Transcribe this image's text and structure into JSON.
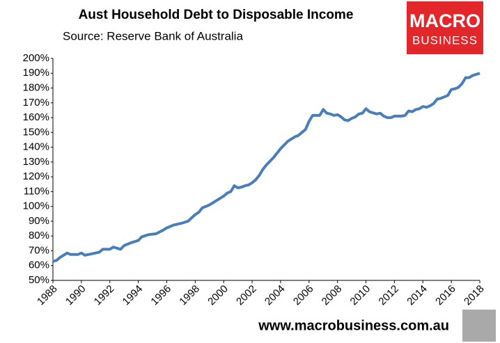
{
  "chart_data": {
    "type": "line",
    "title": "Aust Household Debt to Disposable Income",
    "subtitle": "Source: Reserve Bank of Australia",
    "logo_top": "MACRO",
    "logo_bottom": "BUSINESS",
    "footer": "www.macrobusiness.com.au",
    "color": "#4a7ebb",
    "x": [
      1988.0,
      1988.25,
      1988.5,
      1989.0,
      1989.25,
      1989.75,
      1990.0,
      1990.25,
      1990.75,
      1991.25,
      1991.5,
      1992.0,
      1992.25,
      1992.75,
      1993.0,
      1993.5,
      1994.0,
      1994.25,
      1994.75,
      1995.25,
      1995.75,
      1996.0,
      1996.5,
      1997.0,
      1997.5,
      1998.0,
      1998.25,
      1998.5,
      1999.0,
      1999.5,
      2000.0,
      2000.25,
      2000.5,
      2000.75,
      2001.0,
      2001.25,
      2001.5,
      2001.75,
      2002.0,
      2002.25,
      2002.5,
      2002.75,
      2003.0,
      2003.5,
      2004.0,
      2004.5,
      2005.0,
      2005.25,
      2005.5,
      2005.75,
      2006.0,
      2006.25,
      2006.75,
      2007.0,
      2007.25,
      2007.5,
      2007.75,
      2008.0,
      2008.25,
      2008.5,
      2008.75,
      2009.0,
      2009.25,
      2009.5,
      2009.75,
      2010.0,
      2010.25,
      2010.75,
      2011.0,
      2011.25,
      2011.5,
      2011.75,
      2012.0,
      2012.5,
      2012.75,
      2013.0,
      2013.25,
      2013.5,
      2013.75,
      2014.0,
      2014.25,
      2014.5,
      2014.75,
      2015.0,
      2015.25,
      2015.75,
      2016.0,
      2016.25,
      2016.5,
      2016.75,
      2017.0,
      2017.25,
      2017.5,
      2018.0
    ],
    "values": [
      63,
      63.5,
      65.5,
      68.5,
      67.5,
      67.5,
      68.5,
      67,
      68,
      69,
      71,
      71,
      72.5,
      71,
      73.5,
      75.5,
      77,
      79.5,
      81,
      81.5,
      84,
      85.5,
      87.5,
      88.5,
      90,
      94.5,
      96,
      99,
      101,
      104,
      107,
      109,
      110,
      114,
      112.5,
      113,
      114,
      114.5,
      116,
      118,
      121,
      125,
      128,
      133,
      139,
      144,
      147,
      148,
      150,
      152,
      157.5,
      161.5,
      161.5,
      165.5,
      163,
      162.5,
      161.5,
      162,
      160.5,
      158.5,
      158,
      159.5,
      160.5,
      162.5,
      163,
      166,
      164,
      162.5,
      163,
      161,
      160,
      160,
      161,
      161,
      161.5,
      164.5,
      164,
      165.5,
      166,
      167.5,
      167,
      168,
      169.5,
      172.5,
      173,
      175,
      179,
      179.5,
      180.5,
      183,
      187,
      187,
      188.5,
      190
    ],
    "xlim": [
      1988,
      2018
    ],
    "xticks": [
      1988,
      1990,
      1992,
      1994,
      1996,
      1998,
      2000,
      2002,
      2004,
      2006,
      2008,
      2010,
      2012,
      2014,
      2016,
      2018
    ],
    "ylim": [
      50,
      200
    ],
    "yticks": [
      {
        "value": 50,
        "label": "50%"
      },
      {
        "value": 60,
        "label": "60%"
      },
      {
        "value": 70,
        "label": "70%"
      },
      {
        "value": 80,
        "label": "80%"
      },
      {
        "value": 90,
        "label": "90%"
      },
      {
        "value": 100,
        "label": "100%"
      },
      {
        "value": 110,
        "label": "110%"
      },
      {
        "value": 120,
        "label": "120%"
      },
      {
        "value": 130,
        "label": "130%"
      },
      {
        "value": 140,
        "label": "140%"
      },
      {
        "value": 150,
        "label": "150%"
      },
      {
        "value": 160,
        "label": "160%"
      },
      {
        "value": 170,
        "label": "170%"
      },
      {
        "value": 180,
        "label": "180%"
      },
      {
        "value": 190,
        "label": "190%"
      },
      {
        "value": 200,
        "label": "200%"
      }
    ],
    "grid": false
  }
}
